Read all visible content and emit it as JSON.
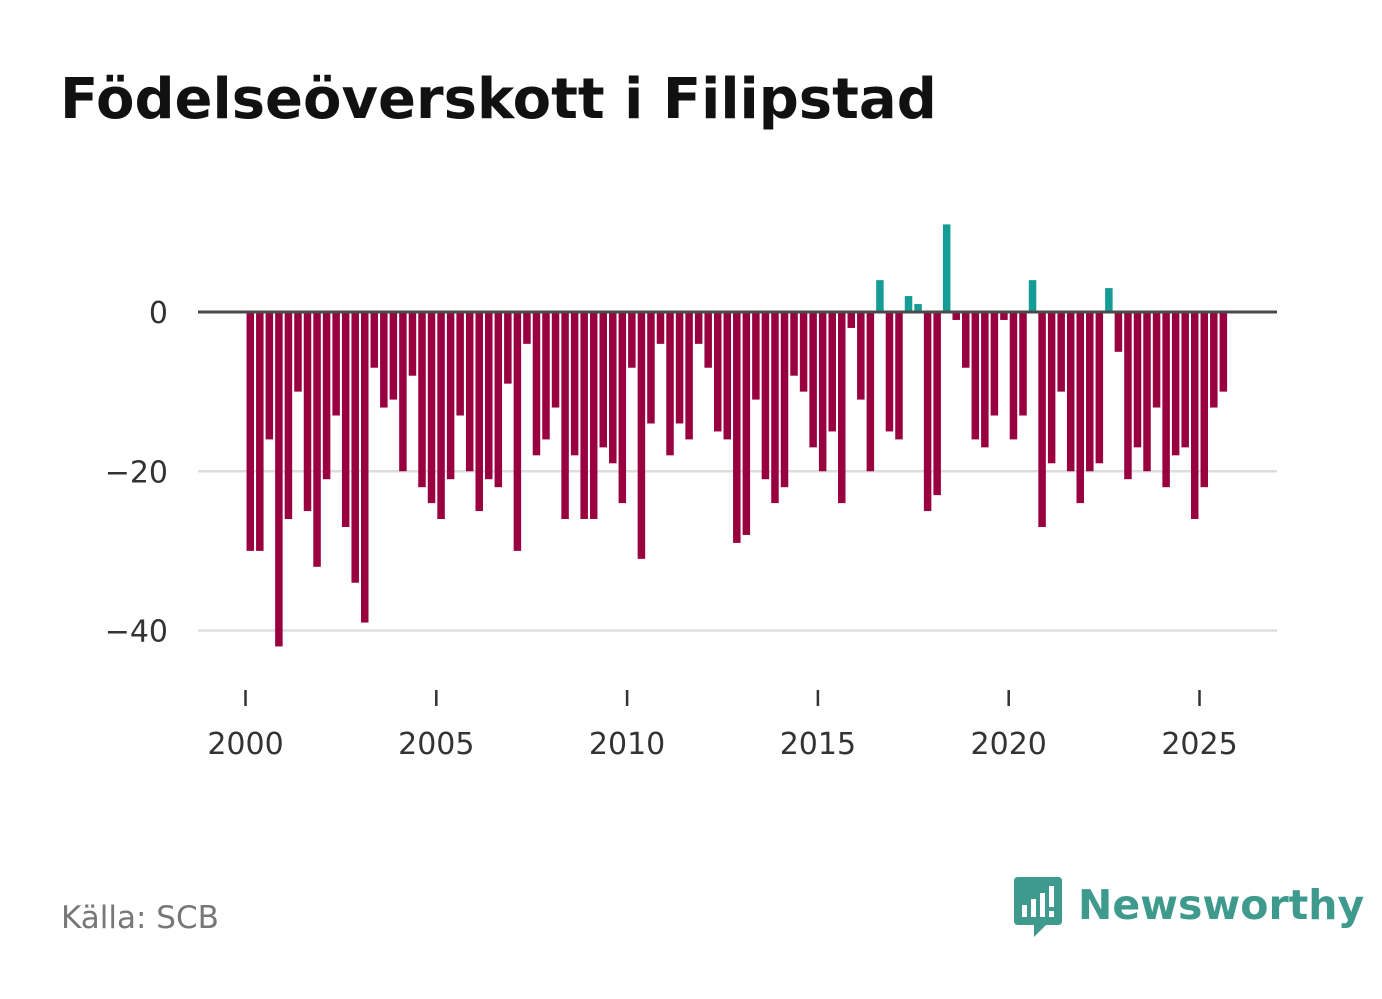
{
  "title": "Födelseöverskott i Filipstad",
  "source": "Källa: SCB",
  "brand": {
    "name": "Newsworthy",
    "icon": "newsworthy-chart-bubble-icon"
  },
  "colors": {
    "negative": "#990040",
    "positive": "#149c96",
    "zero_line": "#4a4a4a",
    "gridline": "#dddddd",
    "brand": "#3f9a8e"
  },
  "chart_data": {
    "type": "bar",
    "title": "Födelseöverskott i Filipstad",
    "xlabel": "",
    "ylabel": "",
    "frequency": "quarterly",
    "start": "2000-Q1",
    "x_ticks": [
      2000,
      2005,
      2010,
      2015,
      2020,
      2025
    ],
    "x_tick_labels": [
      "2000",
      "2005",
      "2010",
      "2015",
      "2020",
      "2025"
    ],
    "xlim": [
      1999.9,
      2027.0
    ],
    "y_ticks": [
      0,
      -20,
      -40
    ],
    "y_tick_labels": [
      "0",
      "−20",
      "−40"
    ],
    "ylim": [
      -47,
      13
    ],
    "grid": true,
    "series": [
      {
        "name": "Födelseöverskott",
        "values": [
          -30,
          -30,
          -16,
          -42,
          -26,
          -10,
          -25,
          -32,
          -21,
          -13,
          -27,
          -34,
          -39,
          -7,
          -12,
          -11,
          -20,
          -8,
          -22,
          -24,
          -26,
          -21,
          -13,
          -20,
          -25,
          -21,
          -22,
          -9,
          -30,
          -4,
          -18,
          -16,
          -12,
          -26,
          -18,
          -26,
          -26,
          -17,
          -19,
          -24,
          -7,
          -31,
          -14,
          -4,
          -18,
          -14,
          -16,
          -4,
          -7,
          -15,
          -16,
          -29,
          -28,
          -11,
          -21,
          -24,
          -22,
          -8,
          -10,
          -17,
          -20,
          -15,
          -24,
          -2,
          -11,
          -20,
          4,
          -15,
          -16,
          2,
          1,
          -25,
          -23,
          11,
          -1,
          -7,
          -16,
          -17,
          -13,
          -1,
          -16,
          -13,
          4,
          -27,
          -19,
          -10,
          -20,
          -24,
          -20,
          -19,
          3,
          -5,
          -21,
          -17,
          -20,
          -12,
          -22,
          -18,
          -17,
          -26,
          -22,
          -12,
          -10
        ]
      }
    ]
  }
}
